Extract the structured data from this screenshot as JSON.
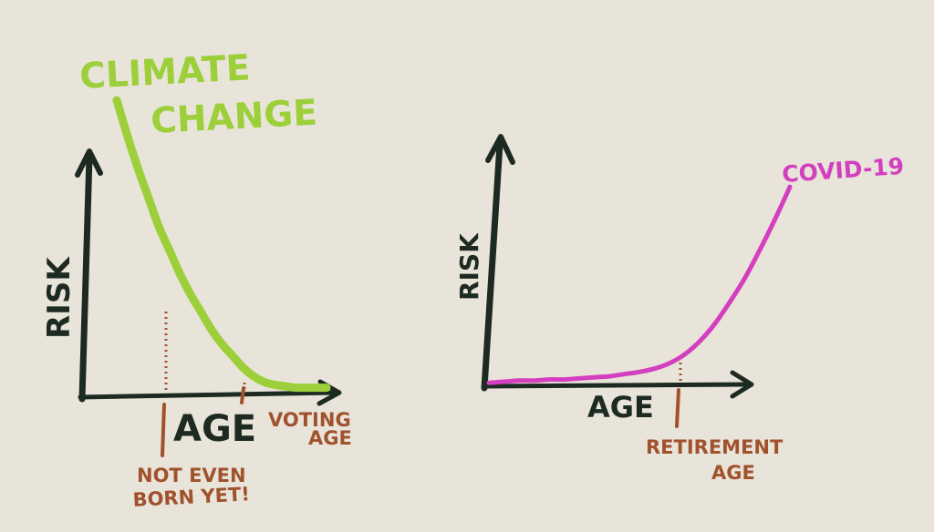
{
  "chart_data": [
    {
      "type": "line",
      "title": "",
      "xlabel": "AGE",
      "ylabel": "RISK",
      "series": [
        {
          "name": "CLIMATE CHANGE",
          "color": "#9ccf3a",
          "x": [
            0.0,
            0.05,
            0.1,
            0.15,
            0.2,
            0.25,
            0.3,
            0.35,
            0.4,
            0.45,
            0.5,
            0.55,
            0.6,
            0.65,
            0.7,
            0.75,
            0.8,
            0.85,
            0.9,
            0.95,
            1.0
          ],
          "y": [
            1.0,
            0.88,
            0.77,
            0.67,
            0.57,
            0.49,
            0.41,
            0.34,
            0.28,
            0.22,
            0.17,
            0.13,
            0.09,
            0.06,
            0.04,
            0.03,
            0.025,
            0.02,
            0.02,
            0.02,
            0.02
          ]
        }
      ],
      "markers": [
        {
          "label": "NOT EVEN BORN YET!",
          "x": 0.2,
          "color": "#a0522d"
        },
        {
          "label": "VOTING AGE",
          "x": 0.7,
          "color": "#a0522d"
        }
      ],
      "grid": false
    },
    {
      "type": "line",
      "title": "",
      "xlabel": "AGE",
      "ylabel": "RISK",
      "series": [
        {
          "name": "COVID-19",
          "color": "#d43fbf",
          "x": [
            0.0,
            0.05,
            0.1,
            0.15,
            0.2,
            0.25,
            0.3,
            0.35,
            0.4,
            0.45,
            0.5,
            0.55,
            0.6,
            0.65,
            0.7,
            0.75,
            0.8,
            0.85,
            0.9,
            0.95,
            1.0
          ],
          "y": [
            0.02,
            0.025,
            0.03,
            0.03,
            0.035,
            0.035,
            0.04,
            0.045,
            0.05,
            0.06,
            0.07,
            0.085,
            0.11,
            0.15,
            0.21,
            0.29,
            0.39,
            0.5,
            0.63,
            0.77,
            0.92
          ]
        }
      ],
      "markers": [
        {
          "label": "RETIREMENT AGE",
          "x": 0.7,
          "color": "#a0522d"
        }
      ],
      "grid": false
    }
  ],
  "labels": {
    "climate_line1": "CLIMATE",
    "climate_line2": "CHANGE",
    "left_ylabel": "RISK",
    "left_xlabel": "AGE",
    "voting_line1": "VOTING",
    "voting_line2": "AGE",
    "unborn_line1": "NOT EVEN",
    "unborn_line2": "BORN YET!",
    "covid": "COVID-19",
    "right_ylabel": "RISK",
    "right_xlabel": "AGE",
    "retire_line1": "RETIREMENT",
    "retire_line2": "AGE"
  },
  "colors": {
    "axis": "#1d2a22",
    "climate": "#9ccf3a",
    "covid": "#d43fbf",
    "annotation": "#a0522d",
    "paper": "#e9e4da"
  }
}
